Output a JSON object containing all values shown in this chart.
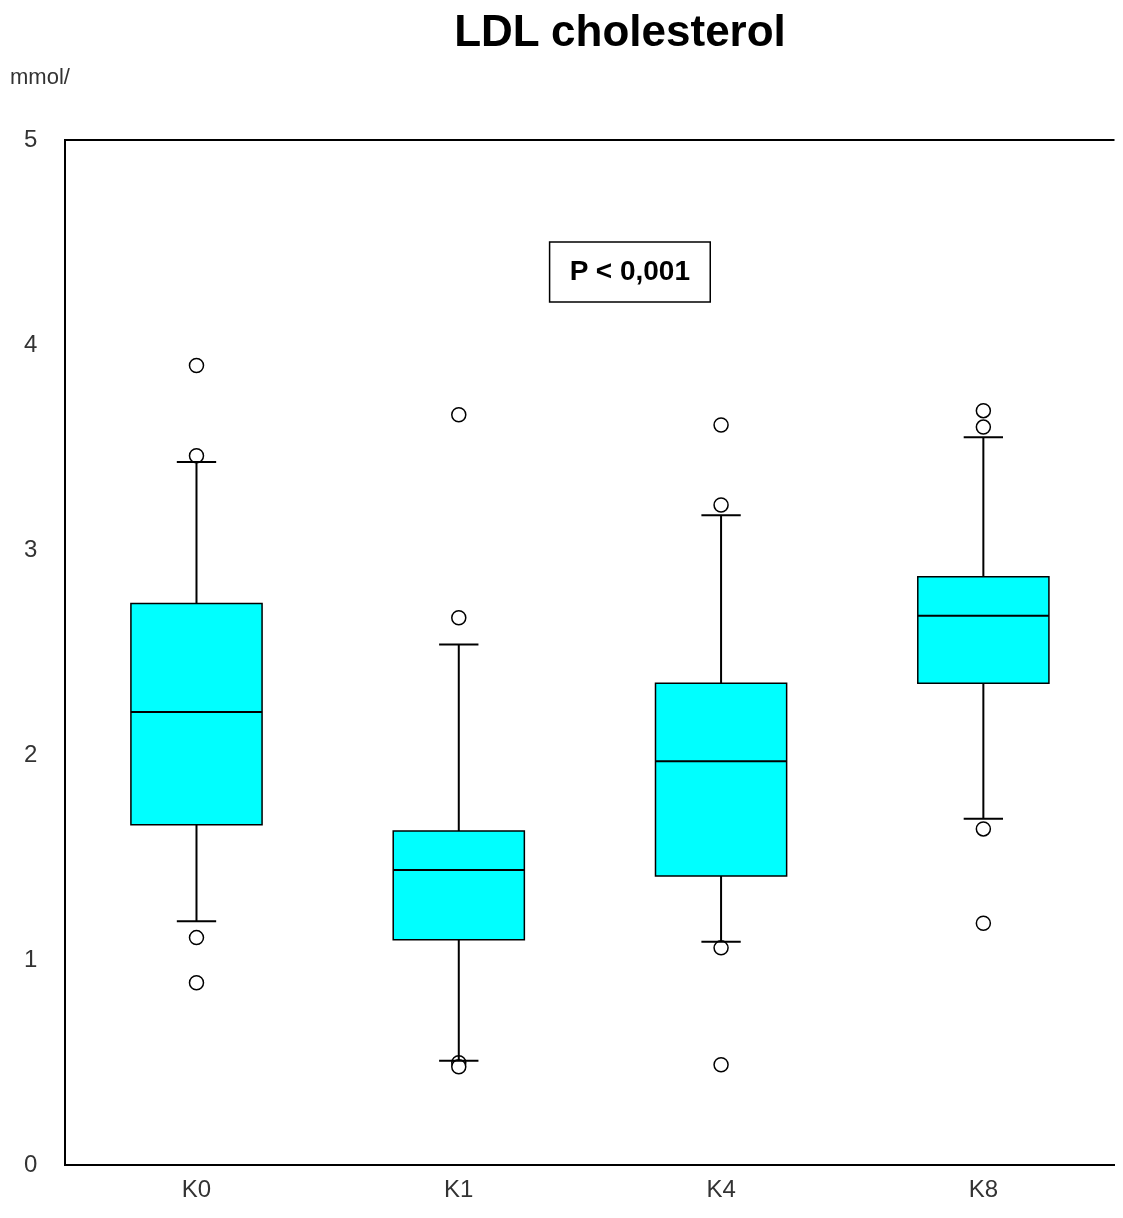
{
  "chart_data": {
    "type": "box",
    "title": "LDL cholesterol",
    "ylabel": "mmol/",
    "categories": [
      "K0",
      "K1",
      "K4",
      "K8"
    ],
    "series": [
      {
        "color": "#00ffff",
        "boxes": [
          {
            "low": 1.19,
            "q1": 1.66,
            "median": 2.21,
            "q3": 2.74,
            "high": 3.43,
            "outliers": [
              3.9,
              3.46,
              1.11,
              0.89
            ]
          },
          {
            "low": 0.51,
            "q1": 1.1,
            "median": 1.44,
            "q3": 1.63,
            "high": 2.54,
            "outliers": [
              3.66,
              2.67,
              0.5,
              0.48
            ]
          },
          {
            "low": 1.09,
            "q1": 1.41,
            "median": 1.97,
            "q3": 2.35,
            "high": 3.17,
            "outliers": [
              3.61,
              3.22,
              1.06,
              0.49
            ]
          },
          {
            "low": 1.69,
            "q1": 2.35,
            "median": 2.68,
            "q3": 2.87,
            "high": 3.55,
            "outliers": [
              3.68,
              3.6,
              1.64,
              1.18
            ]
          }
        ]
      }
    ],
    "ylim": [
      0,
      5
    ],
    "yticks": [
      0,
      1,
      2,
      3,
      4,
      5
    ],
    "annotations": [
      "P < 0,001"
    ]
  }
}
